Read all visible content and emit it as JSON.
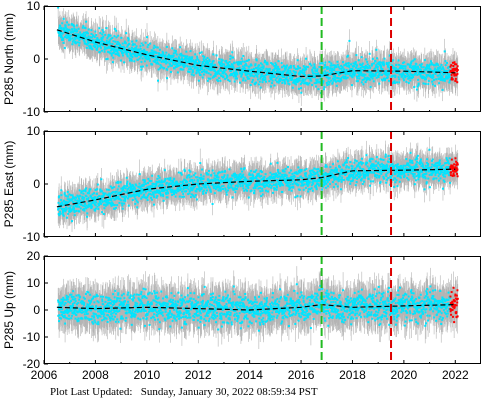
{
  "footer": {
    "label": "Plot Last Updated:",
    "timestamp": "Sunday, January 30, 2022 08:59:34 PST"
  },
  "colors": {
    "error_bars": "#b4b4b4",
    "points": "#00e5ff",
    "recent_points": "#ff0000",
    "trend": "#000000",
    "event_green": "#22bb22",
    "event_red": "#dd0000"
  },
  "chart_data": [
    {
      "type": "scatter",
      "ylabel": "P285 North (mm)",
      "xlim": [
        2006,
        2023
      ],
      "ylim": [
        -10,
        10
      ],
      "xticks": [
        "2006",
        "2008",
        "2010",
        "2012",
        "2014",
        "2016",
        "2018",
        "2020",
        "2022"
      ],
      "yticks": [
        "10",
        "0",
        "-10"
      ],
      "show_xtick_labels": false,
      "vertical_lines": [
        {
          "x": 2016.8,
          "color": "green",
          "style": "dashed"
        },
        {
          "x": 2019.5,
          "color": "red",
          "style": "dashed"
        }
      ],
      "trend": {
        "x": [
          2006.5,
          2008,
          2010,
          2012,
          2014,
          2016,
          2016.8,
          2018,
          2020,
          2022
        ],
        "y": [
          5.5,
          3.2,
          0.8,
          -1.2,
          -2.3,
          -3.3,
          -3.2,
          -2.2,
          -2.3,
          -2.6
        ]
      },
      "scatter_std": 2.0,
      "recent_red_range": [
        2021.8,
        2022.1
      ]
    },
    {
      "type": "scatter",
      "ylabel": "P285 East (mm)",
      "xlim": [
        2006,
        2023
      ],
      "ylim": [
        -10,
        10
      ],
      "xticks": [
        "2006",
        "2008",
        "2010",
        "2012",
        "2014",
        "2016",
        "2018",
        "2020",
        "2022"
      ],
      "yticks": [
        "10",
        "0",
        "-10"
      ],
      "show_xtick_labels": false,
      "vertical_lines": [
        {
          "x": 2016.8,
          "color": "green",
          "style": "dashed"
        },
        {
          "x": 2019.5,
          "color": "red",
          "style": "dashed"
        }
      ],
      "trend": {
        "x": [
          2006.5,
          2008,
          2010,
          2012,
          2014,
          2016,
          2016.8,
          2018,
          2020,
          2022
        ],
        "y": [
          -4.3,
          -3.0,
          -1.0,
          0.0,
          0.5,
          0.8,
          1.2,
          2.5,
          2.6,
          2.8
        ]
      },
      "scatter_std": 2.0,
      "recent_red_range": [
        2021.8,
        2022.1
      ]
    },
    {
      "type": "scatter",
      "ylabel": "P285 Up (mm)",
      "xlim": [
        2006,
        2023
      ],
      "ylim": [
        -20,
        20
      ],
      "xticks": [
        "2006",
        "2008",
        "2010",
        "2012",
        "2014",
        "2016",
        "2018",
        "2020",
        "2022"
      ],
      "yticks": [
        "20",
        "10",
        "0",
        "-10",
        "-20"
      ],
      "show_xtick_labels": true,
      "vertical_lines": [
        {
          "x": 2016.8,
          "color": "green",
          "style": "dashed"
        },
        {
          "x": 2019.5,
          "color": "red",
          "style": "dashed"
        }
      ],
      "trend": {
        "x": [
          2006.5,
          2008,
          2010,
          2012,
          2014,
          2016,
          2016.8,
          2018,
          2020,
          2022
        ],
        "y": [
          1.0,
          0.5,
          1.0,
          0.5,
          0.0,
          1.0,
          2.0,
          1.0,
          1.5,
          2.0
        ]
      },
      "scatter_std": 5.0,
      "recent_red_range": [
        2021.8,
        2022.1
      ]
    }
  ]
}
